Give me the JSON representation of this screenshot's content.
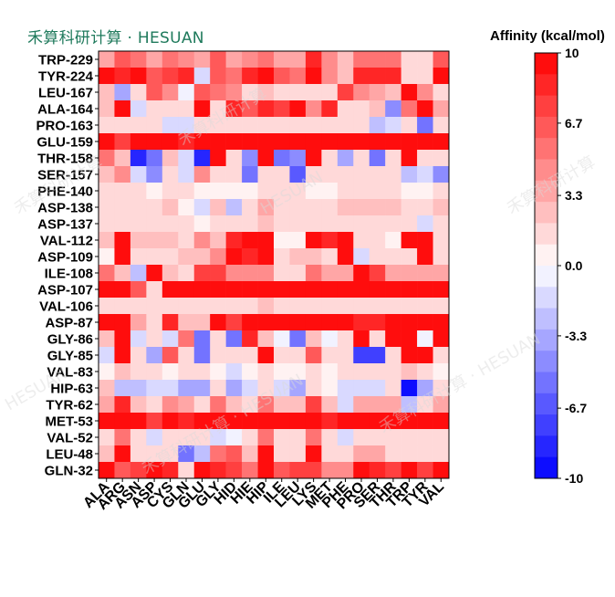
{
  "brand": {
    "text": "禾算科研计算 · HESUAN",
    "color": "#1f7a5c"
  },
  "watermarks": [
    "禾算科研计算",
    "禾算科研计算",
    "HESUAN",
    "禾算科研计算",
    "禾算科研计算 · HESUAN",
    "HESUAN",
    "禾算科研计算 · HESUAN"
  ],
  "chart_data": {
    "type": "heatmap",
    "title": "",
    "colorbar_label": "Affinity (kcal/mol)",
    "colormap": "bwr",
    "vmin": -10,
    "vmax": 10,
    "colorbar_ticks": [
      10,
      6.7,
      3.3,
      0.0,
      -3.3,
      -6.7,
      -10
    ],
    "colorbar_tick_labels": [
      "10",
      "6.7",
      "3.3",
      "0.0",
      "-3.3",
      "-6.7",
      "-10"
    ],
    "x_labels": [
      "ALA",
      "ARG",
      "ASN",
      "ASP",
      "CYS",
      "GLN",
      "GLU",
      "GLY",
      "HID",
      "HIE",
      "HIP",
      "ILE",
      "LEU",
      "LYS",
      "MET",
      "PHE",
      "PRO",
      "SER",
      "THR",
      "TRP",
      "TYR",
      "VAL"
    ],
    "y_labels": [
      "TRP-229",
      "TYR-224",
      "LEU-167",
      "ALA-164",
      "PRO-163",
      "GLU-159",
      "THR-158",
      "SER-157",
      "PHE-140",
      "ASP-138",
      "ASP-137",
      "VAL-112",
      "ASP-109",
      "ILE-108",
      "ASP-107",
      "VAL-106",
      "ASP-87",
      "GLY-86",
      "GLY-85",
      "VAL-83",
      "HIP-63",
      "TYR-62",
      "MET-53",
      "VAL-52",
      "LEU-48",
      "GLN-32"
    ],
    "values": [
      [
        3,
        6,
        5,
        3,
        5,
        4,
        3,
        6,
        3,
        4,
        5,
        3,
        3,
        8,
        4,
        2,
        5,
        5,
        5,
        1,
        1,
        6
      ],
      [
        9,
        8,
        9,
        6,
        7,
        8,
        -2,
        6,
        5,
        8,
        10,
        6,
        5,
        9,
        4,
        2,
        8,
        8,
        8,
        1,
        1,
        9
      ],
      [
        2,
        -4,
        1,
        6,
        4,
        -1,
        6,
        5,
        4,
        1,
        2,
        1,
        1,
        1,
        1,
        7,
        4,
        3,
        2,
        9,
        4,
        1
      ],
      [
        2,
        10,
        -2,
        1,
        1,
        1,
        10,
        1,
        8,
        6,
        8,
        7,
        10,
        4,
        8,
        1,
        1,
        2,
        -5,
        5,
        10,
        3
      ],
      [
        1,
        1,
        1,
        1,
        -2,
        -2,
        1,
        1,
        1,
        1,
        1,
        1,
        1,
        1,
        1,
        1,
        1,
        -3,
        -2,
        1,
        -6,
        1
      ],
      [
        10,
        7,
        10,
        9,
        10,
        8,
        10,
        10,
        10,
        10,
        10,
        10,
        10,
        9,
        9,
        10,
        10,
        10,
        10,
        9,
        10,
        10
      ],
      [
        5,
        2,
        -9,
        -6,
        2,
        -2,
        -9,
        10,
        1,
        -5,
        10,
        -6,
        -5,
        10,
        1,
        -4,
        1,
        -6,
        1,
        10,
        1,
        1
      ],
      [
        2,
        4,
        -2,
        -5,
        1,
        -2,
        4,
        1,
        1,
        -6,
        1,
        1,
        -7,
        1,
        1,
        1,
        1,
        1,
        1,
        -3,
        -2,
        -5
      ],
      [
        1,
        1,
        1,
        0,
        1,
        1,
        0,
        0,
        0,
        0,
        1,
        1,
        1,
        0,
        0,
        1,
        1,
        1,
        1,
        0,
        0,
        1
      ],
      [
        1,
        1,
        1,
        1,
        2,
        0,
        -2,
        2,
        -3,
        1,
        3,
        1,
        1,
        1,
        1,
        2,
        2,
        2,
        2,
        1,
        1,
        2
      ],
      [
        1,
        1,
        1,
        1,
        1,
        1,
        0,
        1,
        1,
        1,
        2,
        1,
        1,
        1,
        1,
        1,
        1,
        1,
        1,
        1,
        -2,
        1
      ],
      [
        2,
        10,
        2,
        2,
        2,
        1,
        4,
        2,
        8,
        10,
        10,
        0,
        0,
        9,
        8,
        10,
        1,
        1,
        0,
        10,
        10,
        1
      ],
      [
        0,
        10,
        1,
        1,
        1,
        2,
        2,
        4,
        10,
        8,
        10,
        1,
        2,
        2,
        1,
        10,
        -2,
        1,
        1,
        1,
        10,
        1
      ],
      [
        5,
        2,
        -3,
        10,
        2,
        1,
        7,
        7,
        4,
        4,
        4,
        1,
        1,
        5,
        3,
        3,
        10,
        7,
        3,
        3,
        3,
        3
      ],
      [
        10,
        10,
        6,
        1,
        10,
        10,
        10,
        10,
        10,
        10,
        10,
        10,
        10,
        10,
        10,
        10,
        10,
        9,
        10,
        9,
        10,
        10
      ],
      [
        1,
        1,
        1,
        1,
        1,
        1,
        1,
        1,
        1,
        1,
        2,
        1,
        1,
        1,
        1,
        1,
        1,
        1,
        1,
        1,
        1,
        1
      ],
      [
        10,
        10,
        3,
        1,
        8,
        2,
        2,
        10,
        7,
        10,
        10,
        10,
        9,
        10,
        9,
        10,
        8,
        8,
        9,
        10,
        10,
        9
      ],
      [
        2,
        10,
        -2,
        1,
        -2,
        5,
        -6,
        1,
        -6,
        8,
        2,
        -1,
        -6,
        2,
        -1,
        1,
        10,
        1,
        10,
        10,
        -1,
        10
      ],
      [
        -2,
        10,
        1,
        -4,
        6,
        1,
        -6,
        1,
        1,
        1,
        10,
        1,
        1,
        6,
        1,
        1,
        -8,
        -8,
        1,
        10,
        10,
        1
      ],
      [
        0,
        2,
        1,
        1,
        0,
        1,
        1,
        0,
        -2,
        0,
        1,
        0,
        0,
        1,
        0,
        1,
        1,
        1,
        1,
        2,
        1,
        0
      ],
      [
        2,
        -3,
        -3,
        -2,
        -2,
        -4,
        -4,
        1,
        -4,
        -2,
        1,
        -2,
        -4,
        1,
        0,
        -2,
        -2,
        -2,
        1,
        -10,
        -4,
        1
      ],
      [
        3,
        8,
        2,
        1,
        4,
        3,
        1,
        5,
        2,
        1,
        5,
        2,
        2,
        7,
        2,
        -2,
        3,
        3,
        3,
        -3,
        1,
        3
      ],
      [
        10,
        10,
        9,
        7,
        10,
        8,
        10,
        10,
        10,
        10,
        10,
        9,
        10,
        10,
        8,
        10,
        10,
        10,
        10,
        10,
        10,
        10
      ],
      [
        1,
        5,
        1,
        -2,
        1,
        1,
        1,
        -2,
        -1,
        1,
        5,
        1,
        1,
        5,
        1,
        -2,
        1,
        1,
        1,
        1,
        1,
        1
      ],
      [
        2,
        10,
        1,
        1,
        1,
        -6,
        -3,
        5,
        6,
        2,
        10,
        1,
        1,
        10,
        1,
        1,
        3,
        3,
        1,
        1,
        1,
        1
      ],
      [
        10,
        6,
        7,
        9,
        8,
        1,
        10,
        8,
        7,
        5,
        10,
        6,
        7,
        7,
        4,
        4,
        9,
        8,
        7,
        10,
        7,
        9
      ]
    ]
  }
}
